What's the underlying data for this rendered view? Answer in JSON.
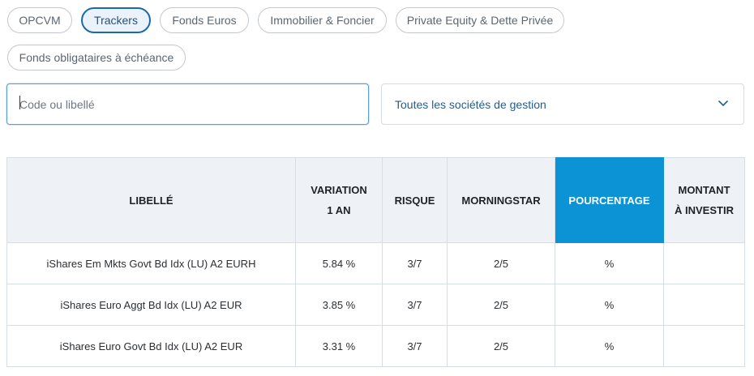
{
  "filters": {
    "tabs": [
      {
        "label": "OPCVM",
        "active": false
      },
      {
        "label": "Trackers",
        "active": true
      },
      {
        "label": "Fonds Euros",
        "active": false
      },
      {
        "label": "Immobilier & Foncier",
        "active": false
      },
      {
        "label": "Private Equity & Dette Privée",
        "active": false
      },
      {
        "label": "Fonds obligataires à échéance",
        "active": false
      }
    ],
    "search_placeholder": "Code ou libellé",
    "manager_select": "Toutes les sociétés de gestion"
  },
  "table": {
    "headers": {
      "name": "LIBELLÉ",
      "variation": "VARIATION 1 AN",
      "risk": "RISQUE",
      "morningstar": "MORNINGSTAR",
      "percentage": "POURCENTAGE",
      "amount": "MONTANT À INVESTIR"
    },
    "rows": [
      {
        "name": "iShares Em Mkts Govt Bd Idx (LU) A2 EURH",
        "variation": "5.84 %",
        "risk": "3/7",
        "morningstar": "2/5",
        "percent_unit": "%"
      },
      {
        "name": "iShares Euro Aggt Bd Idx (LU) A2 EUR",
        "variation": "3.85 %",
        "risk": "3/7",
        "morningstar": "2/5",
        "percent_unit": "%"
      },
      {
        "name": "iShares Euro Govt Bd Idx (LU) A2 EUR",
        "variation": "3.31 %",
        "risk": "3/7",
        "morningstar": "2/5",
        "percent_unit": "%"
      }
    ]
  },
  "colors": {
    "accent": "#0b93d6",
    "link": "#1d5f95",
    "positive": "#31b05b"
  },
  "icons": {
    "select_chevron": "chevron-down-icon"
  }
}
